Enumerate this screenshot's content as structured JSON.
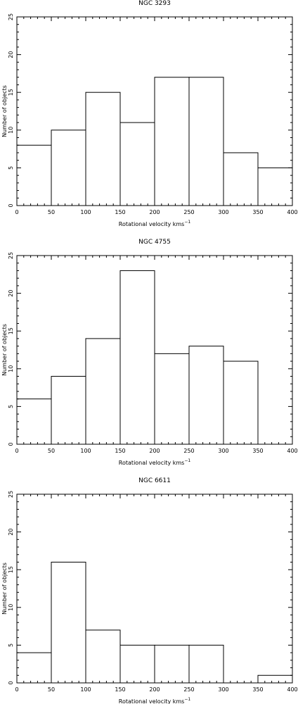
{
  "chart_data": [
    {
      "type": "bar",
      "title": "NGC 3293",
      "xlabel": "Rotational velocity kms",
      "xlabel_sup": "−1",
      "ylabel": "Number of objects",
      "bin_edges": [
        0,
        50,
        100,
        150,
        200,
        250,
        300,
        350,
        400
      ],
      "values": [
        8,
        10,
        15,
        11,
        17,
        17,
        7,
        5
      ],
      "xlim": [
        0,
        400
      ],
      "ylim": [
        0,
        25
      ],
      "x_ticks": [
        0,
        50,
        100,
        150,
        200,
        250,
        300,
        350,
        400
      ],
      "y_ticks": [
        0,
        5,
        10,
        15,
        20,
        25
      ],
      "grid": false
    },
    {
      "type": "bar",
      "title": "NGC 4755",
      "xlabel": "Rotational velocity kms",
      "xlabel_sup": "−1",
      "ylabel": "Number of objects",
      "bin_edges": [
        0,
        50,
        100,
        150,
        200,
        250,
        300,
        350,
        400
      ],
      "values": [
        6,
        9,
        14,
        23,
        12,
        13,
        11,
        0
      ],
      "xlim": [
        0,
        400
      ],
      "ylim": [
        0,
        25
      ],
      "x_ticks": [
        0,
        50,
        100,
        150,
        200,
        250,
        300,
        350,
        400
      ],
      "y_ticks": [
        0,
        5,
        10,
        15,
        20,
        25
      ],
      "grid": false
    },
    {
      "type": "bar",
      "title": "NGC 6611",
      "xlabel": "Rotational velocity kms",
      "xlabel_sup": "−1",
      "ylabel": "Number of objects",
      "bin_edges": [
        0,
        50,
        100,
        150,
        200,
        250,
        300,
        350,
        400
      ],
      "values": [
        4,
        16,
        7,
        5,
        5,
        5,
        0,
        1
      ],
      "xlim": [
        0,
        400
      ],
      "ylim": [
        0,
        25
      ],
      "x_ticks": [
        0,
        50,
        100,
        150,
        200,
        250,
        300,
        350,
        400
      ],
      "y_ticks": [
        0,
        5,
        10,
        15,
        20,
        25
      ],
      "grid": false
    }
  ]
}
